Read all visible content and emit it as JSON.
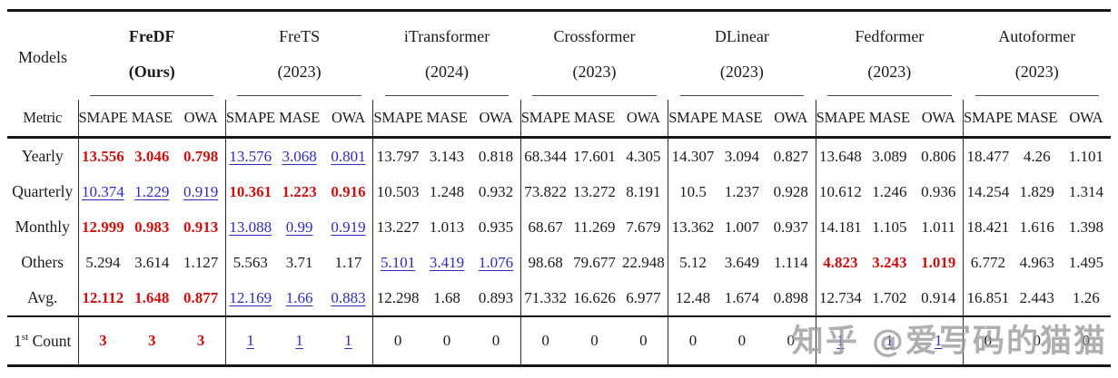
{
  "colors": {
    "best": "#cc1111",
    "second": "#2d2db5",
    "normal": "#1b1b1b",
    "rule": "#161616"
  },
  "watermark": {
    "text": "知乎 @爱写码的猫猫"
  },
  "table": {
    "corner_top": "Models",
    "corner_bottom": "Metric",
    "metrics": [
      "SMAPE",
      "MASE",
      "OWA"
    ],
    "models": [
      {
        "name": "FreDF",
        "year": "(Ours)",
        "bold": true
      },
      {
        "name": "FreTS",
        "year": "(2023)",
        "bold": false
      },
      {
        "name": "iTransformer",
        "year": "(2024)",
        "bold": false
      },
      {
        "name": "Crossformer",
        "year": "(2023)",
        "bold": false
      },
      {
        "name": "DLinear",
        "year": "(2023)",
        "bold": false
      },
      {
        "name": "Fedformer",
        "year": "(2023)",
        "bold": false
      },
      {
        "name": "Autoformer",
        "year": "(2023)",
        "bold": false
      }
    ],
    "style_legend": {
      "b": "best (red bold)",
      "s": "second best (blue underline)",
      "n": "normal"
    },
    "rows": [
      {
        "label": "Yearly",
        "values": [
          "13.556",
          "3.046",
          "0.798",
          "13.576",
          "3.068",
          "0.801",
          "13.797",
          "3.143",
          "0.818",
          "68.344",
          "17.601",
          "4.305",
          "14.307",
          "3.094",
          "0.827",
          "13.648",
          "3.089",
          "0.806",
          "18.477",
          "4.26",
          "1.101"
        ],
        "styles": "bbbsssnnnnnnnnnnnnnnn"
      },
      {
        "label": "Quarterly",
        "values": [
          "10.374",
          "1.229",
          "0.919",
          "10.361",
          "1.223",
          "0.916",
          "10.503",
          "1.248",
          "0.932",
          "73.822",
          "13.272",
          "8.191",
          "10.5",
          "1.237",
          "0.928",
          "10.612",
          "1.246",
          "0.936",
          "14.254",
          "1.829",
          "1.314"
        ],
        "styles": "sssbbbnnnnnnnnnnnnnnn"
      },
      {
        "label": "Monthly",
        "values": [
          "12.999",
          "0.983",
          "0.913",
          "13.088",
          "0.99",
          "0.919",
          "13.227",
          "1.013",
          "0.935",
          "68.67",
          "11.269",
          "7.679",
          "13.362",
          "1.007",
          "0.937",
          "14.181",
          "1.105",
          "1.011",
          "18.421",
          "1.616",
          "1.398"
        ],
        "styles": "bbbsssnnnnnnnnnnnnnnn"
      },
      {
        "label": "Others",
        "values": [
          "5.294",
          "3.614",
          "1.127",
          "5.563",
          "3.71",
          "1.17",
          "5.101",
          "3.419",
          "1.076",
          "98.68",
          "79.677",
          "22.948",
          "5.12",
          "3.649",
          "1.114",
          "4.823",
          "3.243",
          "1.019",
          "6.772",
          "4.963",
          "1.495"
        ],
        "styles": "nnnnnnsssnnnnnnbbbnnn"
      },
      {
        "label": "Avg.",
        "values": [
          "12.112",
          "1.648",
          "0.877",
          "12.169",
          "1.66",
          "0.883",
          "12.298",
          "1.68",
          "0.893",
          "71.332",
          "16.626",
          "6.977",
          "12.48",
          "1.674",
          "0.898",
          "12.734",
          "1.702",
          "0.914",
          "16.851",
          "2.443",
          "1.26"
        ],
        "styles": "bbbsssnnnnnnnnnnnnnnn"
      }
    ],
    "count_row": {
      "label_base": "1",
      "label_sup": "st",
      "label_rest": " Count",
      "values": [
        "3",
        "3",
        "3",
        "1",
        "1",
        "1",
        "0",
        "0",
        "0",
        "0",
        "0",
        "0",
        "0",
        "0",
        "0",
        "1",
        "1",
        "1",
        "0",
        "0",
        "0"
      ],
      "styles": "bbbsssnnnnnnnnnsssnnn"
    }
  }
}
